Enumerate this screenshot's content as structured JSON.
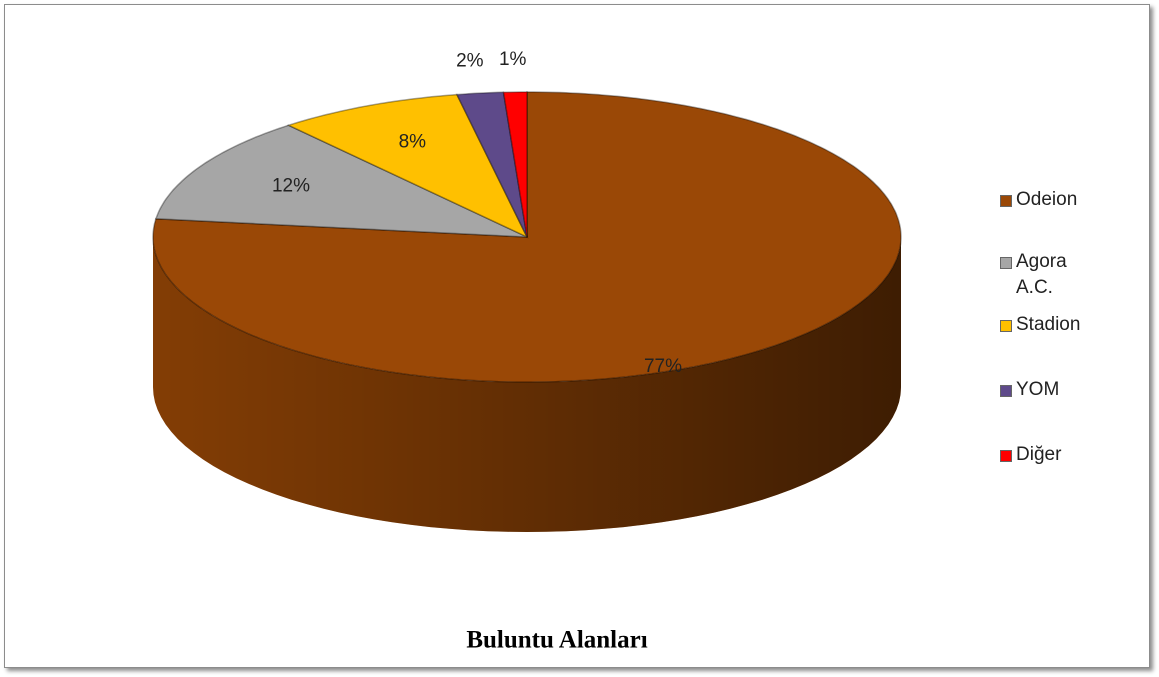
{
  "chart_data": {
    "type": "pie",
    "title": "Buluntu Alanları",
    "categories": [
      "Odeion",
      "Agora A.C.",
      "Stadion",
      "YOM",
      "Diğer"
    ],
    "values": [
      77,
      12,
      8,
      2,
      1
    ],
    "value_labels": [
      "77%",
      "12%",
      "8%",
      "2%",
      "1%"
    ],
    "colors": [
      "#9a4806",
      "#a6a6a6",
      "#ffc000",
      "#5e4a8a",
      "#ff0000"
    ],
    "legend": "right"
  }
}
